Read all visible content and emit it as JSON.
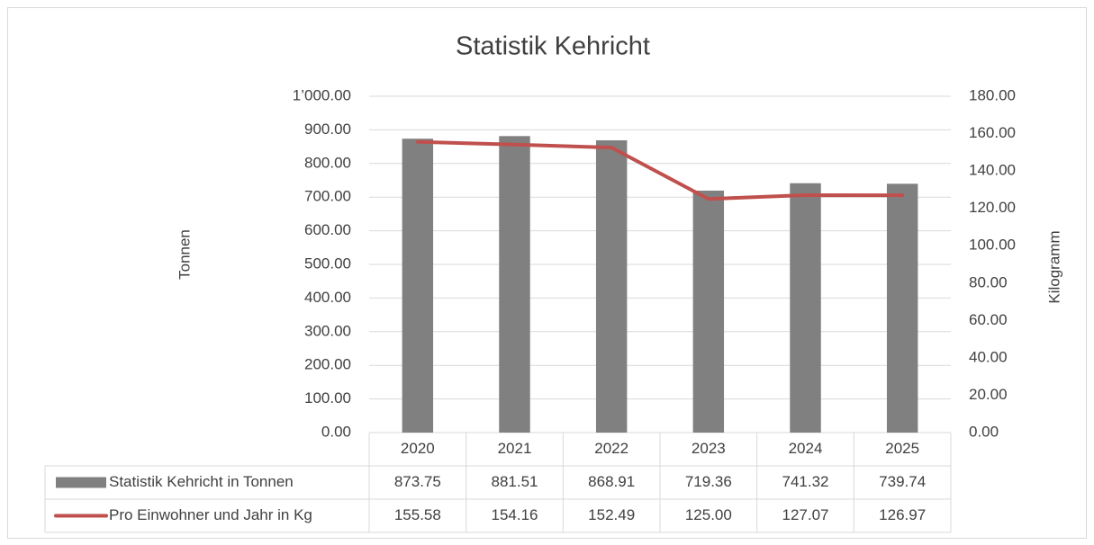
{
  "chart_data": {
    "type": "bar-line",
    "title": "Statistik Kehricht",
    "y_label": "Tonnen",
    "y2_label": "Kilogramm",
    "categories": [
      "2020",
      "2021",
      "2022",
      "2023",
      "2024",
      "2025"
    ],
    "series": [
      {
        "name": "Statistik Kehricht in Tonnen",
        "type": "bar",
        "color": "#808080",
        "values": [
          873.75,
          881.51,
          868.91,
          719.36,
          741.32,
          739.74
        ],
        "value_labels": [
          "873.75",
          "881.51",
          "868.91",
          "719.36",
          "741.32",
          "739.74"
        ]
      },
      {
        "name": "Pro Einwohner und Jahr in Kg",
        "type": "line",
        "axis": "y2",
        "color": "#c0504d",
        "values": [
          155.58,
          154.16,
          152.49,
          125.0,
          127.07,
          126.97
        ],
        "value_labels": [
          "155.58",
          "154.16",
          "152.49",
          "125.00",
          "127.07",
          "126.97"
        ]
      }
    ],
    "ylim": [
      0,
      1000
    ],
    "yticks": [
      {
        "value": 0,
        "label": "0.00"
      },
      {
        "value": 100,
        "label": "100.00"
      },
      {
        "value": 200,
        "label": "200.00"
      },
      {
        "value": 300,
        "label": "300.00"
      },
      {
        "value": 400,
        "label": "400.00"
      },
      {
        "value": 500,
        "label": "500.00"
      },
      {
        "value": 600,
        "label": "600.00"
      },
      {
        "value": 700,
        "label": "700.00"
      },
      {
        "value": 800,
        "label": "800.00"
      },
      {
        "value": 900,
        "label": "900.00"
      },
      {
        "value": 1000,
        "label": "1’000.00"
      }
    ],
    "y2lim": [
      0,
      180
    ],
    "y2ticks": [
      {
        "value": 0,
        "label": "0.00"
      },
      {
        "value": 20,
        "label": "20.00"
      },
      {
        "value": 40,
        "label": "40.00"
      },
      {
        "value": 60,
        "label": "60.00"
      },
      {
        "value": 80,
        "label": "80.00"
      },
      {
        "value": 100,
        "label": "100.00"
      },
      {
        "value": 120,
        "label": "120.00"
      },
      {
        "value": 140,
        "label": "140.00"
      },
      {
        "value": 160,
        "label": "160.00"
      },
      {
        "value": 180,
        "label": "180.00"
      }
    ],
    "grid": true,
    "data_table": true
  }
}
